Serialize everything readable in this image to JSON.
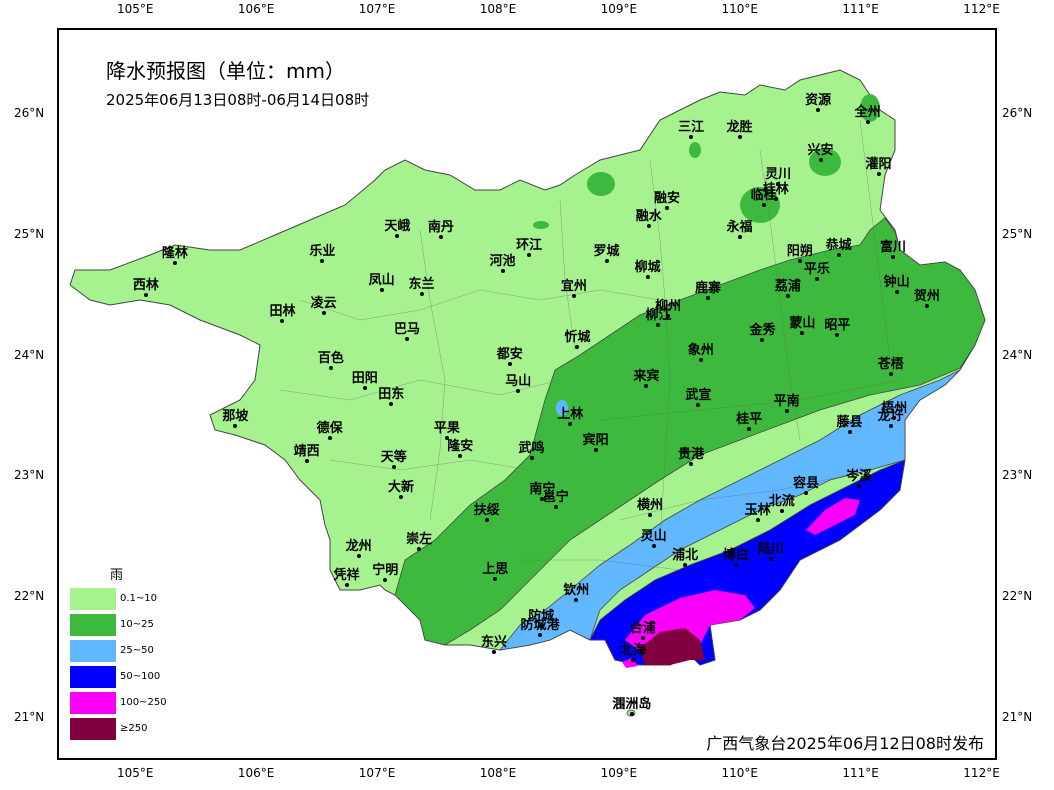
{
  "title": "降水预报图（单位：mm）",
  "subtitle": "2025年06月13日08时-06月14日08时",
  "footer": "广西气象台2025年06月12日08时发布",
  "axes": {
    "lon_ticks": [
      "105°E",
      "106°E",
      "107°E",
      "108°E",
      "109°E",
      "110°E",
      "111°E",
      "112°E"
    ],
    "lat_ticks": [
      "26°N",
      "25°N",
      "24°N",
      "23°N",
      "22°N",
      "21°N"
    ]
  },
  "legend": {
    "title": "雨",
    "items": [
      {
        "label": "0.1~10",
        "color": "#a6f28f"
      },
      {
        "label": "10~25",
        "color": "#3dba3d"
      },
      {
        "label": "25~50",
        "color": "#61b8ff"
      },
      {
        "label": "50~100",
        "color": "#0000fe"
      },
      {
        "label": "100~250",
        "color": "#fa00fa"
      },
      {
        "label": "≥250",
        "color": "#810040"
      }
    ]
  },
  "cities": [
    {
      "name": "资源",
      "lon": 110.65,
      "lat": 26.03
    },
    {
      "name": "全州",
      "lon": 111.06,
      "lat": 25.93
    },
    {
      "name": "三江",
      "lon": 109.6,
      "lat": 25.81
    },
    {
      "name": "龙胜",
      "lon": 110.0,
      "lat": 25.81
    },
    {
      "name": "兴安",
      "lon": 110.67,
      "lat": 25.62
    },
    {
      "name": "灌阳",
      "lon": 111.15,
      "lat": 25.5
    },
    {
      "name": "灵川",
      "lon": 110.32,
      "lat": 25.42
    },
    {
      "name": "桂林",
      "lon": 110.3,
      "lat": 25.3
    },
    {
      "name": "临桂",
      "lon": 110.2,
      "lat": 25.25
    },
    {
      "name": "融安",
      "lon": 109.4,
      "lat": 25.22
    },
    {
      "name": "融水",
      "lon": 109.25,
      "lat": 25.07
    },
    {
      "name": "永福",
      "lon": 110.0,
      "lat": 24.98
    },
    {
      "name": "天峨",
      "lon": 107.17,
      "lat": 24.99
    },
    {
      "name": "南丹",
      "lon": 107.53,
      "lat": 24.98
    },
    {
      "name": "隆林",
      "lon": 105.33,
      "lat": 24.77
    },
    {
      "name": "乐业",
      "lon": 106.55,
      "lat": 24.78
    },
    {
      "name": "环江",
      "lon": 108.26,
      "lat": 24.83
    },
    {
      "name": "罗城",
      "lon": 108.9,
      "lat": 24.78
    },
    {
      "name": "河池",
      "lon": 108.04,
      "lat": 24.7
    },
    {
      "name": "柳城",
      "lon": 109.24,
      "lat": 24.65
    },
    {
      "name": "阳朔",
      "lon": 110.5,
      "lat": 24.78
    },
    {
      "name": "恭城",
      "lon": 110.82,
      "lat": 24.83
    },
    {
      "name": "富川",
      "lon": 111.27,
      "lat": 24.82
    },
    {
      "name": "平乐",
      "lon": 110.64,
      "lat": 24.63
    },
    {
      "name": "西林",
      "lon": 105.09,
      "lat": 24.5
    },
    {
      "name": "凤山",
      "lon": 107.04,
      "lat": 24.54
    },
    {
      "name": "东兰",
      "lon": 107.37,
      "lat": 24.51
    },
    {
      "name": "宜州",
      "lon": 108.63,
      "lat": 24.49
    },
    {
      "name": "鹿寨",
      "lon": 109.74,
      "lat": 24.48
    },
    {
      "name": "荔浦",
      "lon": 110.4,
      "lat": 24.49
    },
    {
      "name": "钟山",
      "lon": 111.3,
      "lat": 24.53
    },
    {
      "name": "贺州",
      "lon": 111.55,
      "lat": 24.41
    },
    {
      "name": "田林",
      "lon": 106.22,
      "lat": 24.29
    },
    {
      "name": "凌云",
      "lon": 106.56,
      "lat": 24.35
    },
    {
      "name": "柳州",
      "lon": 109.41,
      "lat": 24.33
    },
    {
      "name": "柳江",
      "lon": 109.33,
      "lat": 24.25
    },
    {
      "name": "金秀",
      "lon": 110.19,
      "lat": 24.13
    },
    {
      "name": "蒙山",
      "lon": 110.52,
      "lat": 24.19
    },
    {
      "name": "昭平",
      "lon": 110.81,
      "lat": 24.17
    },
    {
      "name": "巴马",
      "lon": 107.25,
      "lat": 24.14
    },
    {
      "name": "忻城",
      "lon": 108.66,
      "lat": 24.07
    },
    {
      "name": "象州",
      "lon": 109.68,
      "lat": 23.96
    },
    {
      "name": "都安",
      "lon": 108.1,
      "lat": 23.93
    },
    {
      "name": "百色",
      "lon": 106.62,
      "lat": 23.9
    },
    {
      "name": "苍梧",
      "lon": 111.25,
      "lat": 23.85
    },
    {
      "name": "田阳",
      "lon": 106.9,
      "lat": 23.73
    },
    {
      "name": "马山",
      "lon": 108.17,
      "lat": 23.71
    },
    {
      "name": "来宾",
      "lon": 109.23,
      "lat": 23.75
    },
    {
      "name": "田东",
      "lon": 107.12,
      "lat": 23.6
    },
    {
      "name": "武宣",
      "lon": 109.66,
      "lat": 23.59
    },
    {
      "name": "平南",
      "lon": 110.39,
      "lat": 23.54
    },
    {
      "name": "梧州",
      "lon": 111.28,
      "lat": 23.48
    },
    {
      "name": "上林",
      "lon": 108.6,
      "lat": 23.43
    },
    {
      "name": "桂平",
      "lon": 110.08,
      "lat": 23.39
    },
    {
      "name": "藤县",
      "lon": 110.91,
      "lat": 23.37
    },
    {
      "name": "龙圩",
      "lon": 111.25,
      "lat": 23.42
    },
    {
      "name": "那坡",
      "lon": 105.83,
      "lat": 23.42
    },
    {
      "name": "德保",
      "lon": 106.61,
      "lat": 23.32
    },
    {
      "name": "平果",
      "lon": 107.58,
      "lat": 23.32
    },
    {
      "name": "宾阳",
      "lon": 108.81,
      "lat": 23.22
    },
    {
      "name": "隆安",
      "lon": 107.69,
      "lat": 23.17
    },
    {
      "name": "武鸣",
      "lon": 108.28,
      "lat": 23.15
    },
    {
      "name": "靖西",
      "lon": 106.42,
      "lat": 23.13
    },
    {
      "name": "天等",
      "lon": 107.14,
      "lat": 23.08
    },
    {
      "name": "贵港",
      "lon": 109.6,
      "lat": 23.1
    },
    {
      "name": "岑溪",
      "lon": 110.99,
      "lat": 22.92
    },
    {
      "name": "大新",
      "lon": 107.2,
      "lat": 22.83
    },
    {
      "name": "容县",
      "lon": 110.55,
      "lat": 22.86
    },
    {
      "name": "南宁",
      "lon": 108.37,
      "lat": 22.81
    },
    {
      "name": "邕宁",
      "lon": 108.48,
      "lat": 22.75
    },
    {
      "name": "横州",
      "lon": 109.26,
      "lat": 22.68
    },
    {
      "name": "玉林",
      "lon": 110.15,
      "lat": 22.64
    },
    {
      "name": "北流",
      "lon": 110.35,
      "lat": 22.71
    },
    {
      "name": "扶绥",
      "lon": 107.91,
      "lat": 22.64
    },
    {
      "name": "崇左",
      "lon": 107.35,
      "lat": 22.4
    },
    {
      "name": "灵山",
      "lon": 109.29,
      "lat": 22.42
    },
    {
      "name": "龙州",
      "lon": 106.85,
      "lat": 22.34
    },
    {
      "name": "浦北",
      "lon": 109.55,
      "lat": 22.27
    },
    {
      "name": "博白",
      "lon": 109.97,
      "lat": 22.27
    },
    {
      "name": "陆川",
      "lon": 110.26,
      "lat": 22.32
    },
    {
      "name": "上思",
      "lon": 107.98,
      "lat": 22.15
    },
    {
      "name": "宁明",
      "lon": 107.07,
      "lat": 22.14
    },
    {
      "name": "凭祥",
      "lon": 106.75,
      "lat": 22.1
    },
    {
      "name": "钦州",
      "lon": 108.65,
      "lat": 21.98
    },
    {
      "name": "防城",
      "lon": 108.36,
      "lat": 21.76
    },
    {
      "name": "合浦",
      "lon": 109.2,
      "lat": 21.66
    },
    {
      "name": "防城港",
      "lon": 108.35,
      "lat": 21.69
    },
    {
      "name": "东兴",
      "lon": 107.97,
      "lat": 21.55
    },
    {
      "name": "北海",
      "lon": 109.12,
      "lat": 21.48
    },
    {
      "name": "涠洲岛",
      "lon": 109.11,
      "lat": 21.03
    }
  ]
}
